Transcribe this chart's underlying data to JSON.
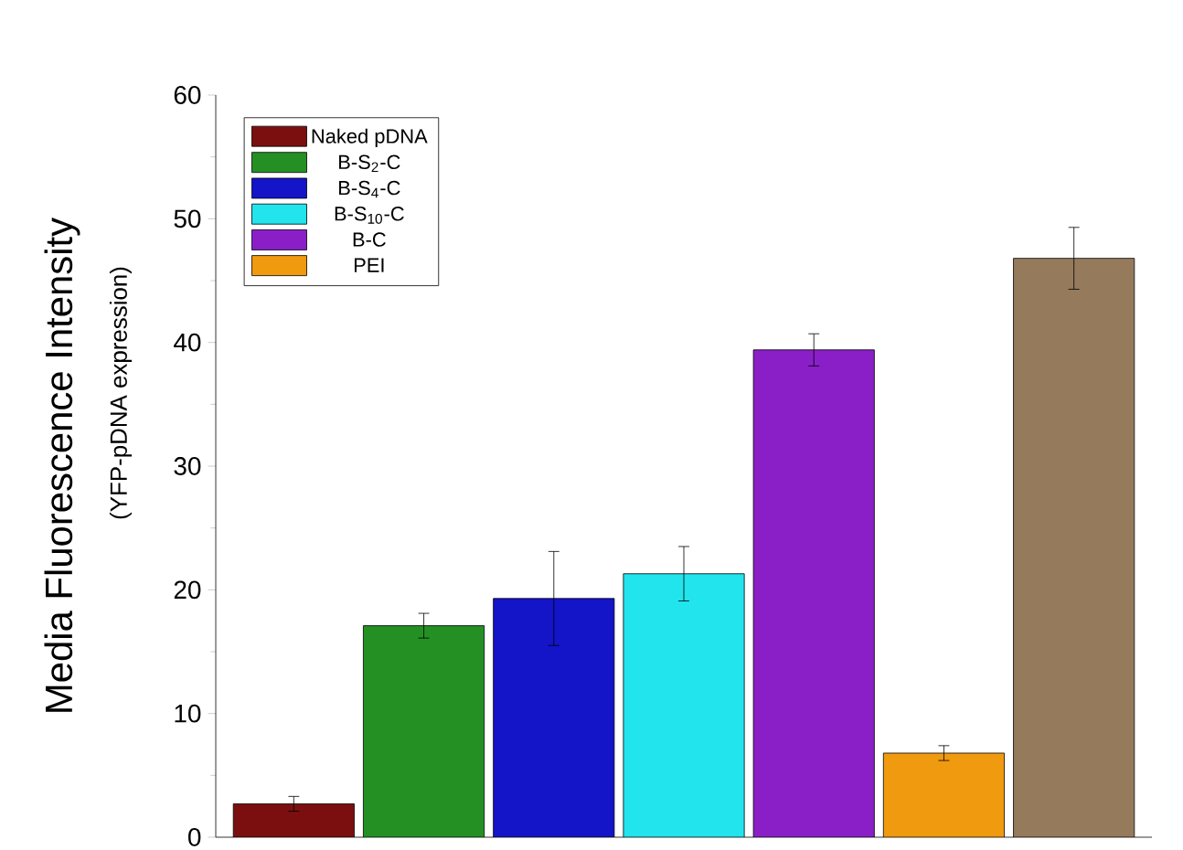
{
  "chart_data": {
    "type": "bar",
    "ylabel": "Media Fluorescence Intensity",
    "annotations": [
      "(YFP-pDNA expression)"
    ],
    "categories": [
      null,
      null,
      null,
      null,
      null,
      null,
      null
    ],
    "ylim": [
      0,
      60
    ],
    "yticks": [
      0,
      10,
      20,
      30,
      40,
      50,
      60
    ],
    "legend": "top left",
    "series": [
      {
        "name": "Naked pDNA",
        "color": "#7b0f0f",
        "values": [
          2.7,
          null,
          null,
          null,
          null,
          null,
          null
        ],
        "errors": [
          0.6,
          null,
          null,
          null,
          null,
          null,
          null
        ]
      },
      {
        "name": "B-S$_{2}$-C",
        "color": "#249024",
        "values": [
          null,
          17.1,
          null,
          null,
          null,
          null,
          null
        ],
        "errors": [
          null,
          1.0,
          null,
          null,
          null,
          null,
          null
        ]
      },
      {
        "name": "B-S$_{4}$-C",
        "color": "#1414c8",
        "values": [
          null,
          null,
          19.3,
          null,
          null,
          null,
          null
        ],
        "errors": [
          null,
          null,
          3.8,
          null,
          null,
          null,
          null
        ]
      },
      {
        "name": "B-S$_{10}$-C",
        "color": "#22e4ec",
        "values": [
          null,
          null,
          null,
          21.3,
          null,
          null,
          null
        ],
        "errors": [
          null,
          null,
          null,
          2.2,
          null,
          null,
          null
        ]
      },
      {
        "name": "B-C",
        "color": "#8a1fc8",
        "values": [
          null,
          null,
          null,
          null,
          39.4,
          null,
          null
        ],
        "errors": [
          null,
          null,
          null,
          null,
          1.3,
          null,
          null
        ]
      },
      {
        "name": "PEI",
        "color": "#f09a10",
        "values": [
          null,
          null,
          null,
          null,
          null,
          6.8,
          null
        ],
        "errors": [
          null,
          null,
          null,
          null,
          null,
          0.6,
          null
        ]
      },
      {
        "color": "#957a5c",
        "values": [
          null,
          null,
          null,
          null,
          null,
          null,
          46.8
        ],
        "errors": [
          null,
          null,
          null,
          null,
          null,
          null,
          2.5
        ]
      }
    ]
  }
}
